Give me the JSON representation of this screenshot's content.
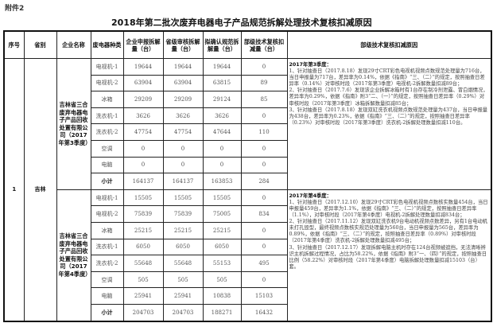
{
  "attachment_label": "附件2",
  "title": "2018年第二批次废弃电器电子产品规范拆解处理技术复核扣减原因",
  "headers": [
    "序号",
    "省别",
    "企业名称",
    "废电器种类",
    "企业申报拆解量（台）",
    "省级审核拆解量（台）",
    "拟确认规范拆解量（台）",
    "部级技术复核扣减量（台）",
    "部级技术复核扣减原因"
  ],
  "seq": "1",
  "province": "吉林",
  "blocks": [
    {
      "company": "吉林省三合废弃电器电子产品回收处置有限公司（2017年第3季度）",
      "rows": [
        [
          "电视机-1",
          "19644",
          "19644",
          "19644",
          "0"
        ],
        [
          "电视机-2",
          "63904",
          "63904",
          "63815",
          "89"
        ],
        [
          "冰箱",
          "29209",
          "29209",
          "29124",
          "85"
        ],
        [
          "洗衣机-1",
          "3626",
          "3626",
          "3626",
          "0"
        ],
        [
          "洗衣机-2",
          "47754",
          "47754",
          "47644",
          "110"
        ],
        [
          "空调",
          "0",
          "0",
          "0",
          "0"
        ],
        [
          "电脑",
          "0",
          "0",
          "0",
          "0"
        ],
        [
          "小计",
          "164137",
          "164137",
          "163853",
          "284"
        ]
      ],
      "reason_title": "2017年第3季度：",
      "reasons": [
        "1、针对抽查日（2017.8.18）发现29寸CRT彩色电视机视频点数规范处理量为716台，当日申报量为717台，差异率为0.14%，依据《指南》“三、（二）”的规定，按照抽查日差异率（0.14%）对审核时段（2017年第3季度）电视机-2拆解数量扣减89台；",
        "2、针对抽查日（2017.7.6）发现该企业拆解冰箱时有1台存在制冷剂泄露、冒白烟情况，差异率为0.29%，依据《指南》附3“二、（一）”的规定，按照抽查日差异率（0.29%）对审核时段（2017年第3季度）冰箱拆解数量扣减85台；",
        "3、针对抽查日（2017.8.18）发现双缸洗衣机视频点数规范处理量为437台，当日申报量为438台，差异率为0.23%，依据《指南》“三、（二）”的规定，按照抽查日差异率（0.23%）对审核时段（2017年第3季度）洗衣机-2拆解处理数量扣减110台。"
      ]
    },
    {
      "company": "吉林省三合废弃电器电子产品回收处置有限公司（2017年第4季度）",
      "rows": [
        [
          "电视机-1",
          "15505",
          "15505",
          "15505",
          "0"
        ],
        [
          "电视机-2",
          "75839",
          "75839",
          "75005",
          "834"
        ],
        [
          "冰箱",
          "25215",
          "25215",
          "25215",
          "0"
        ],
        [
          "洗衣机-1",
          "6050",
          "6050",
          "6050",
          "0"
        ],
        [
          "洗衣机-2",
          "55648",
          "55648",
          "55153",
          "495"
        ],
        [
          "空调",
          "505",
          "505",
          "505",
          "0"
        ],
        [
          "电脑",
          "25941",
          "25941",
          "10838",
          "15103"
        ],
        [
          "小计",
          "204703",
          "204703",
          "188271",
          "16432"
        ]
      ],
      "reason_title": "2017年第4季度：",
      "reasons": [
        "1、针对抽查日（2017.12.10）发现29寸CRT彩色电视机视频点数核实数量454台，当日申报量459台，差异率为1.1%，依据《指南》“三、（二）”的规定，按照抽查日差异率（1.1%），对审核时段（2017年第4季度）电视机-2拆解处理数量扣减834台；",
        "2、针对抽查日（2017.11.12）发现双缸洗衣机9台电动机视频点数差异，另有1台电动机未打孔毁型，最终视频点数核实规范处理量为560台，当日申报量为565台，差异率为0.89%，依据《指南》“三、（二）”的规定，按照抽查日差异率（0.89%）对审核时段（2017年第4季度）洗衣机-2拆解处理数量扣减495台；",
        "3、针对抽查日（2017.12.17）发现拆解电脑主机时存在124台视频被遮挡，无法清晰辨识主机拆解过程情况，占比为58.22%，依据《指南》附3“一、（四）”的规定，按照抽查日比例（58.22%）对审核时段（2017年第4季度）电脑拆解处理数量扣减15103（台）套。"
      ]
    }
  ]
}
